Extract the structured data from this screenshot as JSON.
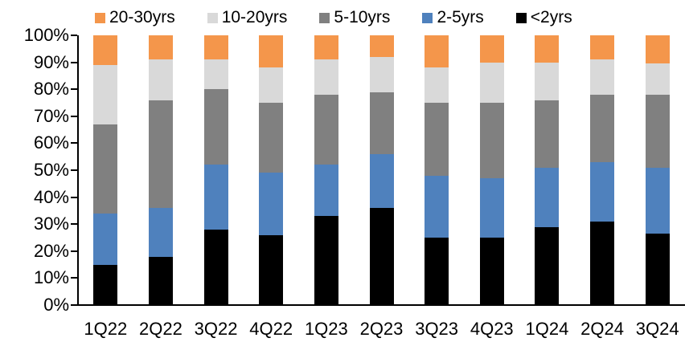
{
  "chart_data": {
    "type": "bar",
    "subtype": "stacked-100-percent",
    "title": "",
    "xlabel": "",
    "ylabel": "",
    "grid": false,
    "legend_position": "top",
    "legend_order": [
      "20-30yrs",
      "10-20yrs",
      "5-10yrs",
      "2-5yrs",
      "<2yrs"
    ],
    "stack_order_bottom_to_top": [
      "<2yrs",
      "2-5yrs",
      "5-10yrs",
      "10-20yrs",
      "20-30yrs"
    ],
    "categories": [
      "1Q22",
      "2Q22",
      "3Q22",
      "4Q22",
      "1Q23",
      "2Q23",
      "3Q23",
      "4Q23",
      "1Q24",
      "2Q24",
      "3Q24"
    ],
    "series": [
      {
        "name": "<2yrs",
        "color": "#000000",
        "values": [
          15,
          18,
          28,
          26,
          33,
          36,
          25,
          25,
          29,
          31,
          26.5
        ]
      },
      {
        "name": "2-5yrs",
        "color": "#4F81BD",
        "values": [
          19,
          18,
          24,
          23,
          19,
          20,
          23,
          22,
          22,
          22,
          24.5
        ]
      },
      {
        "name": "5-10yrs",
        "color": "#808080",
        "values": [
          33,
          40,
          28,
          26,
          26,
          23,
          27,
          28,
          25,
          25,
          27
        ]
      },
      {
        "name": "10-20yrs",
        "color": "#D9D9D9",
        "values": [
          22,
          15,
          11,
          13,
          13,
          13,
          13,
          15,
          14,
          13,
          11.5
        ]
      },
      {
        "name": "20-30yrs",
        "color": "#F4964B",
        "values": [
          11,
          9,
          9,
          12,
          9,
          8,
          12,
          10,
          10,
          9,
          10.5
        ]
      }
    ],
    "y_axis": {
      "min": 0,
      "max": 100,
      "step": 10,
      "tick_labels": [
        "0%",
        "10%",
        "20%",
        "30%",
        "40%",
        "50%",
        "60%",
        "70%",
        "80%",
        "90%",
        "100%"
      ]
    },
    "colors": {
      "orange": "#F4964B",
      "light_gray": "#D9D9D9",
      "dark_gray": "#808080",
      "blue": "#4F81BD",
      "black": "#000000",
      "axis": "#000000",
      "background": "#FFFFFF"
    }
  }
}
